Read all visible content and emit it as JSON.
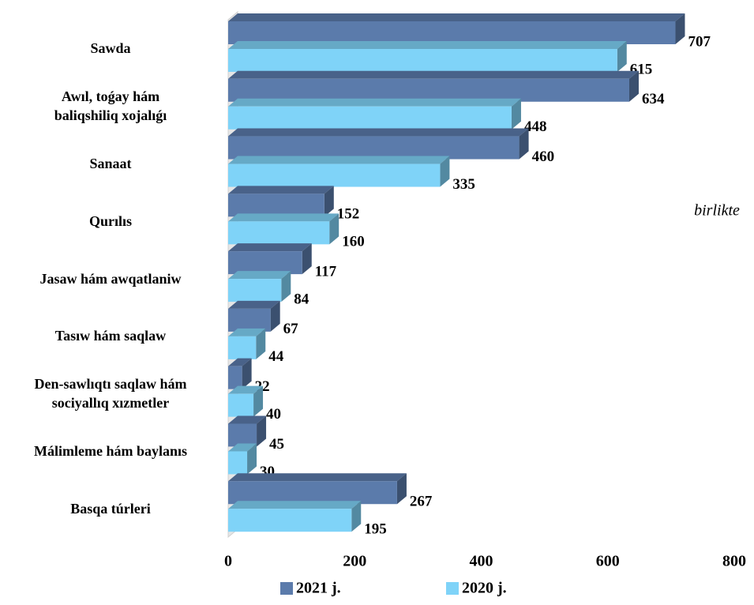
{
  "chart_data": {
    "type": "bar",
    "orientation": "horizontal",
    "categories": [
      "Sawda",
      "Awıl, toǵay hám\nbaliqshiliq xojalıǵı",
      "Sanaat",
      "Qurılıs",
      "Jasaw hám awqatlaniw",
      "Tasıw hám saqlaw",
      "Den-sawlıqtı saqlaw hám\nsociyallıq xızmetler",
      "Málimleme hám baylanıs",
      "Basqa túrleri"
    ],
    "series": [
      {
        "name": "2021 j.",
        "color": "#5b7bab",
        "values": [
          707,
          634,
          460,
          152,
          117,
          67,
          22,
          45,
          267
        ]
      },
      {
        "name": "2020 j.",
        "color": "#7fd3f8",
        "values": [
          615,
          448,
          335,
          160,
          84,
          44,
          40,
          30,
          195
        ]
      }
    ],
    "xlim": [
      0,
      800
    ],
    "xticks": [
      0,
      200,
      400,
      600,
      800
    ],
    "grid": false,
    "annotation": "birlikte",
    "legend": "bottom"
  }
}
